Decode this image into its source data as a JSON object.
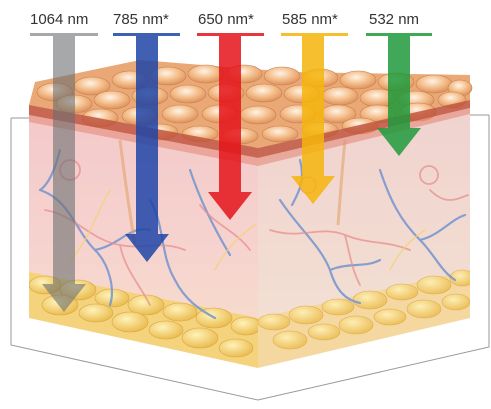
{
  "wavelengths": [
    {
      "label": "1064 nm",
      "color": "#6c6f72",
      "depth_layer": "subcutaneous fat"
    },
    {
      "label": "785 nm*",
      "color": "#1f45a8",
      "depth_layer": "deep dermis"
    },
    {
      "label": "650 nm*",
      "color": "#e4141b",
      "depth_layer": "mid dermis"
    },
    {
      "label": "585 nm*",
      "color": "#f5b50c",
      "depth_layer": "upper dermis"
    },
    {
      "label": "532 nm",
      "color": "#1f9a3c",
      "depth_layer": "epidermis"
    }
  ],
  "layers": {
    "epidermis": "#e8a571",
    "dermis": "#f0c3c6",
    "fat": "#f6d27a",
    "vessel_vein": "#6f8fc8",
    "vessel_artery": "#e47a7a"
  }
}
